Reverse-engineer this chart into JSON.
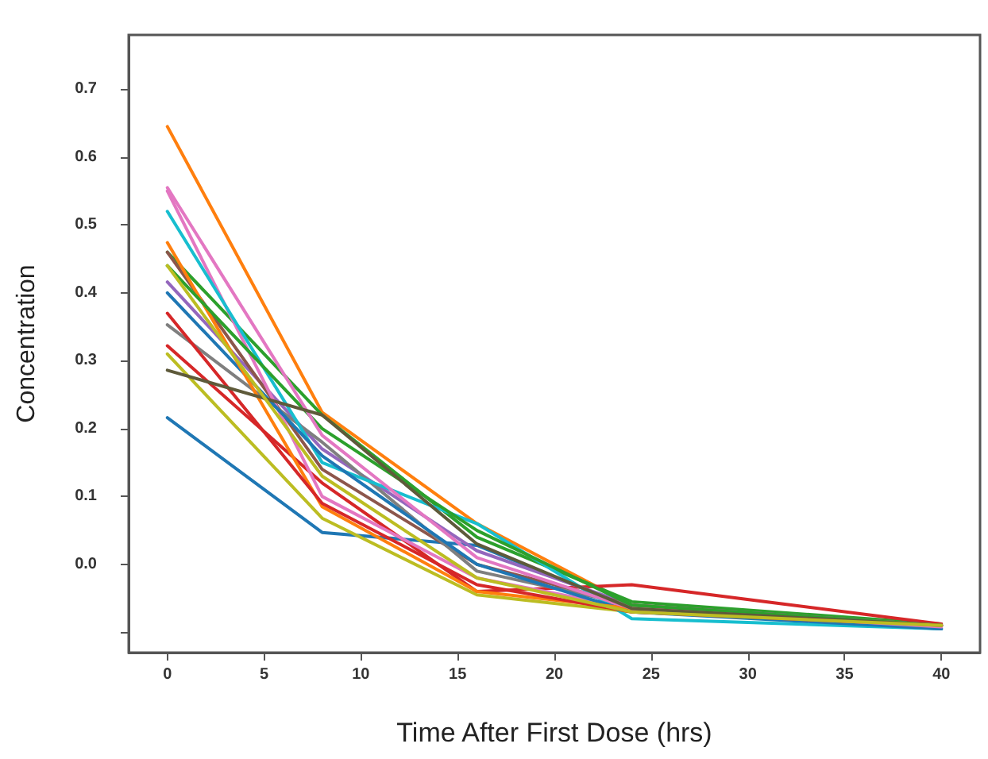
{
  "chart_data": {
    "type": "line",
    "xlabel": "Time After First Dose (hrs)",
    "ylabel": "Concentration",
    "x": [
      0,
      8,
      16,
      24,
      40
    ],
    "xlim": [
      -2,
      42
    ],
    "xticks": [
      0,
      5,
      10,
      15,
      20,
      25,
      30,
      35,
      40
    ],
    "ylim": [
      -0.13,
      0.78
    ],
    "yticks": [
      {
        "value": -0.1,
        "label": null
      },
      {
        "value": 0,
        "label": "0.0"
      },
      0.1,
      0.2,
      0.3,
      0.4,
      0.5,
      0.6,
      0.7
    ],
    "grid": false,
    "marker": "none",
    "line_style": "solid",
    "series": [
      {
        "color": "#1f77b4",
        "values": [
          0.216,
          0.047,
          0.028,
          -0.065,
          -0.095
        ]
      },
      {
        "color": "#ff7f0e",
        "values": [
          0.645,
          0.224,
          0.06,
          -0.06,
          -0.09
        ]
      },
      {
        "color": "#2ca02c",
        "values": [
          0.46,
          0.22,
          0.04,
          -0.055,
          -0.088
        ]
      },
      {
        "color": "#d62728",
        "values": [
          0.322,
          0.12,
          -0.04,
          -0.03,
          -0.088
        ]
      },
      {
        "color": "#9467bd",
        "values": [
          0.416,
          0.17,
          0.02,
          -0.06,
          -0.09
        ]
      },
      {
        "color": "#8c564b",
        "values": [
          0.46,
          0.14,
          0.0,
          -0.06,
          -0.09
        ]
      },
      {
        "color": "#e377c2",
        "values": [
          0.55,
          0.1,
          -0.02,
          -0.065,
          -0.09
        ]
      },
      {
        "color": "#7f7f7f",
        "values": [
          0.353,
          0.18,
          -0.01,
          -0.06,
          -0.09
        ]
      },
      {
        "color": "#bcbd22",
        "values": [
          0.31,
          0.068,
          -0.045,
          -0.07,
          -0.09
        ]
      },
      {
        "color": "#17becf",
        "values": [
          0.52,
          0.15,
          0.06,
          -0.08,
          -0.095
        ]
      },
      {
        "color": "#1f77b4",
        "values": [
          0.4,
          0.16,
          0.0,
          -0.07,
          -0.095
        ]
      },
      {
        "color": "#ff7f0e",
        "values": [
          0.474,
          0.085,
          -0.04,
          -0.065,
          -0.09
        ]
      },
      {
        "color": "#2ca02c",
        "values": [
          0.44,
          0.2,
          0.05,
          -0.06,
          -0.09
        ]
      },
      {
        "color": "#d62728",
        "values": [
          0.37,
          0.09,
          -0.03,
          -0.07,
          -0.09
        ]
      },
      {
        "color": "#e377c2",
        "values": [
          0.555,
          0.19,
          0.01,
          -0.065,
          -0.092
        ]
      },
      {
        "color": "#5e5a3a",
        "values": [
          0.286,
          0.22,
          0.03,
          -0.065,
          -0.09
        ]
      },
      {
        "color": "#bcbd22",
        "values": [
          0.44,
          0.13,
          -0.02,
          -0.07,
          -0.09
        ]
      }
    ]
  }
}
